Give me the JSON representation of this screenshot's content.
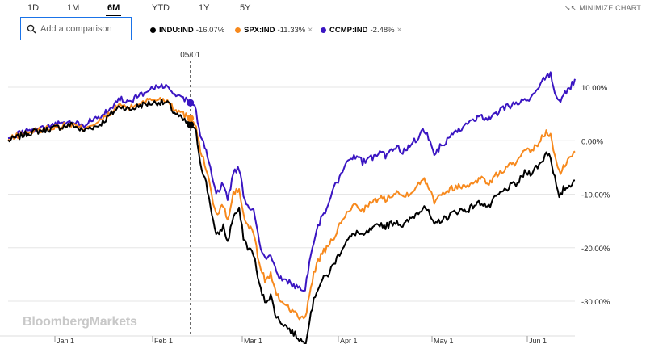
{
  "range_tabs": [
    "1D",
    "1M",
    "6M",
    "YTD",
    "1Y",
    "5Y"
  ],
  "active_tab": "6M",
  "minimize_label": "MINIMIZE CHART",
  "search": {
    "placeholder": "Add a comparison",
    "value": ""
  },
  "legend": [
    {
      "name": "INDU:IND",
      "change": "-16.07%",
      "color": "#000000",
      "removable": false
    },
    {
      "name": "SPX:IND",
      "change": "-11.33%",
      "color": "#f7891d",
      "removable": true
    },
    {
      "name": "CCMP:IND",
      "change": "-2.48%",
      "color": "#3a15c2",
      "removable": true
    }
  ],
  "watermark": "BloombergMarkets",
  "chart_data": {
    "type": "line",
    "title": "",
    "xlabel": "",
    "ylabel": "",
    "x_tick_labels": [
      "Jan 1",
      "Feb 1",
      "Mar 1",
      "Apr 1",
      "May 1",
      "Jun 1"
    ],
    "y_tick_labels": [
      "10.00%",
      "0.00%",
      "-10.00%",
      "-20.00%",
      "-30.00%"
    ],
    "y_ticks": [
      10,
      0,
      -10,
      -20,
      -30
    ],
    "ylim": [
      -38,
      18
    ],
    "grid": true,
    "cursor": {
      "label": "05/01",
      "index": 127
    },
    "series": [
      {
        "name": "INDU:IND",
        "color": "#000000",
        "anchors": [
          [
            0,
            0
          ],
          [
            5,
            0.5
          ],
          [
            15,
            1.5
          ],
          [
            25,
            2
          ],
          [
            35,
            2.5
          ],
          [
            45,
            3
          ],
          [
            52,
            1.8
          ],
          [
            57,
            2.5
          ],
          [
            62,
            2.7
          ],
          [
            66,
            3.5
          ],
          [
            72,
            5
          ],
          [
            78,
            6.5
          ],
          [
            85,
            5.8
          ],
          [
            91,
            6.5
          ],
          [
            95,
            6.8
          ],
          [
            99,
            7
          ],
          [
            105,
            7.2
          ],
          [
            112,
            6.9
          ],
          [
            115,
            5.5
          ],
          [
            122,
            3.8
          ],
          [
            127,
            3
          ],
          [
            131,
            1.5
          ],
          [
            134,
            -4
          ],
          [
            138,
            -8
          ],
          [
            141,
            -12
          ],
          [
            145,
            -18
          ],
          [
            150,
            -16
          ],
          [
            153,
            -19
          ],
          [
            157,
            -14
          ],
          [
            161,
            -13
          ],
          [
            164,
            -18
          ],
          [
            167,
            -20
          ],
          [
            171,
            -21
          ],
          [
            175,
            -27
          ],
          [
            179,
            -30
          ],
          [
            183,
            -29
          ],
          [
            187,
            -33
          ],
          [
            191,
            -34
          ],
          [
            195,
            -35
          ],
          [
            199,
            -36
          ],
          [
            203,
            -37
          ],
          [
            207,
            -38
          ],
          [
            211,
            -32
          ],
          [
            215,
            -28
          ],
          [
            219,
            -26
          ],
          [
            223,
            -25
          ],
          [
            227,
            -23
          ],
          [
            231,
            -21
          ],
          [
            235,
            -19
          ],
          [
            239,
            -18
          ],
          [
            243,
            -17
          ],
          [
            247,
            -18
          ],
          [
            251,
            -17
          ],
          [
            255,
            -16.5
          ],
          [
            259,
            -15.5
          ],
          [
            263,
            -16
          ],
          [
            267,
            -15.5
          ],
          [
            271,
            -15
          ],
          [
            275,
            -16
          ],
          [
            279,
            -15
          ],
          [
            283,
            -14
          ],
          [
            287,
            -13
          ],
          [
            290,
            -12
          ],
          [
            294,
            -14
          ],
          [
            297,
            -16.07
          ],
          [
            300,
            -15
          ],
          [
            305,
            -14.5
          ],
          [
            310,
            -13.5
          ],
          [
            315,
            -13
          ],
          [
            320,
            -13
          ],
          [
            325,
            -12
          ],
          [
            330,
            -11.5
          ],
          [
            335,
            -12.5
          ],
          [
            340,
            -10.5
          ],
          [
            345,
            -9.5
          ],
          [
            350,
            -8.5
          ],
          [
            355,
            -8
          ],
          [
            360,
            -6
          ],
          [
            364,
            -6
          ],
          [
            368,
            -5
          ],
          [
            372,
            -4
          ],
          [
            375,
            -2
          ],
          [
            378,
            -3
          ],
          [
            381,
            -7
          ],
          [
            384,
            -11
          ],
          [
            387,
            -9
          ],
          [
            391,
            -8.5
          ],
          [
            395,
            -7
          ]
        ]
      },
      {
        "name": "SPX:IND",
        "color": "#f7891d",
        "anchors": [
          [
            0,
            0
          ],
          [
            5,
            0.8
          ],
          [
            15,
            1.6
          ],
          [
            25,
            2.2
          ],
          [
            35,
            2.6
          ],
          [
            45,
            3
          ],
          [
            52,
            2.2
          ],
          [
            57,
            3
          ],
          [
            62,
            3.3
          ],
          [
            66,
            4
          ],
          [
            72,
            5.2
          ],
          [
            78,
            6.8
          ],
          [
            85,
            6
          ],
          [
            91,
            7
          ],
          [
            95,
            7.4
          ],
          [
            99,
            7.6
          ],
          [
            105,
            7.8
          ],
          [
            112,
            7.5
          ],
          [
            115,
            6.2
          ],
          [
            122,
            5
          ],
          [
            127,
            4.2
          ],
          [
            131,
            2.8
          ],
          [
            134,
            -2
          ],
          [
            138,
            -5
          ],
          [
            141,
            -9
          ],
          [
            145,
            -14
          ],
          [
            150,
            -12
          ],
          [
            153,
            -15
          ],
          [
            157,
            -10
          ],
          [
            161,
            -9
          ],
          [
            164,
            -14
          ],
          [
            167,
            -16
          ],
          [
            171,
            -17
          ],
          [
            175,
            -23
          ],
          [
            179,
            -26
          ],
          [
            183,
            -25
          ],
          [
            187,
            -29
          ],
          [
            191,
            -30
          ],
          [
            195,
            -31
          ],
          [
            199,
            -32
          ],
          [
            203,
            -33
          ],
          [
            207,
            -33.5
          ],
          [
            211,
            -27
          ],
          [
            215,
            -23
          ],
          [
            219,
            -21
          ],
          [
            223,
            -20
          ],
          [
            227,
            -18
          ],
          [
            231,
            -16
          ],
          [
            235,
            -14
          ],
          [
            239,
            -12.5
          ],
          [
            243,
            -12
          ],
          [
            247,
            -13
          ],
          [
            251,
            -12
          ],
          [
            255,
            -11.5
          ],
          [
            259,
            -10.5
          ],
          [
            263,
            -11
          ],
          [
            267,
            -10
          ],
          [
            271,
            -9.5
          ],
          [
            275,
            -10.5
          ],
          [
            279,
            -9.8
          ],
          [
            283,
            -9
          ],
          [
            287,
            -8
          ],
          [
            290,
            -7
          ],
          [
            294,
            -9
          ],
          [
            297,
            -11.33
          ],
          [
            300,
            -10
          ],
          [
            305,
            -9.5
          ],
          [
            310,
            -8.8
          ],
          [
            315,
            -8.5
          ],
          [
            320,
            -8.5
          ],
          [
            325,
            -7.5
          ],
          [
            330,
            -7
          ],
          [
            335,
            -8
          ],
          [
            340,
            -6.5
          ],
          [
            345,
            -5.5
          ],
          [
            350,
            -4.5
          ],
          [
            355,
            -4
          ],
          [
            360,
            -2
          ],
          [
            364,
            -2
          ],
          [
            368,
            -1
          ],
          [
            372,
            0.5
          ],
          [
            375,
            1.5
          ],
          [
            378,
            1
          ],
          [
            381,
            -3
          ],
          [
            384,
            -6
          ],
          [
            387,
            -5
          ],
          [
            391,
            -3.5
          ],
          [
            395,
            -2
          ]
        ]
      },
      {
        "name": "CCMP:IND",
        "color": "#3a15c2",
        "anchors": [
          [
            0,
            0
          ],
          [
            5,
            1
          ],
          [
            15,
            2
          ],
          [
            25,
            2.6
          ],
          [
            35,
            3.1
          ],
          [
            45,
            3.4
          ],
          [
            52,
            2.8
          ],
          [
            57,
            3.6
          ],
          [
            62,
            4
          ],
          [
            66,
            4.8
          ],
          [
            72,
            6.2
          ],
          [
            78,
            8
          ],
          [
            85,
            7.3
          ],
          [
            91,
            8.5
          ],
          [
            95,
            9
          ],
          [
            99,
            9.5
          ],
          [
            105,
            10
          ],
          [
            112,
            10
          ],
          [
            115,
            9
          ],
          [
            122,
            8
          ],
          [
            127,
            7.1
          ],
          [
            131,
            5.7
          ],
          [
            134,
            0.5
          ],
          [
            138,
            -1.5
          ],
          [
            141,
            -5
          ],
          [
            145,
            -10
          ],
          [
            150,
            -8
          ],
          [
            153,
            -11
          ],
          [
            157,
            -6
          ],
          [
            161,
            -5
          ],
          [
            164,
            -10
          ],
          [
            167,
            -12
          ],
          [
            171,
            -13
          ],
          [
            175,
            -19
          ],
          [
            179,
            -22
          ],
          [
            183,
            -21
          ],
          [
            187,
            -25
          ],
          [
            191,
            -26
          ],
          [
            195,
            -26.5
          ],
          [
            199,
            -27
          ],
          [
            203,
            -27.5
          ],
          [
            207,
            -27.5
          ],
          [
            211,
            -21
          ],
          [
            215,
            -17
          ],
          [
            219,
            -14
          ],
          [
            223,
            -12
          ],
          [
            227,
            -9
          ],
          [
            231,
            -7
          ],
          [
            235,
            -5
          ],
          [
            239,
            -3
          ],
          [
            243,
            -2.8
          ],
          [
            247,
            -4
          ],
          [
            251,
            -3.5
          ],
          [
            255,
            -3
          ],
          [
            259,
            -2
          ],
          [
            263,
            -3
          ],
          [
            267,
            -2
          ],
          [
            271,
            -1
          ],
          [
            275,
            -2
          ],
          [
            279,
            -1
          ],
          [
            283,
            0
          ],
          [
            287,
            1
          ],
          [
            290,
            2
          ],
          [
            294,
            0
          ],
          [
            297,
            -2.48
          ],
          [
            300,
            -1.5
          ],
          [
            305,
            0
          ],
          [
            310,
            1
          ],
          [
            315,
            2
          ],
          [
            320,
            3
          ],
          [
            325,
            4
          ],
          [
            330,
            4.5
          ],
          [
            335,
            4
          ],
          [
            340,
            5
          ],
          [
            345,
            6
          ],
          [
            350,
            6.5
          ],
          [
            355,
            6.8
          ],
          [
            360,
            7.5
          ],
          [
            364,
            8
          ],
          [
            368,
            9.5
          ],
          [
            372,
            11
          ],
          [
            375,
            12
          ],
          [
            378,
            12.5
          ],
          [
            381,
            9
          ],
          [
            384,
            7
          ],
          [
            387,
            8.5
          ],
          [
            391,
            9.5
          ],
          [
            395,
            11.5
          ]
        ]
      }
    ]
  }
}
